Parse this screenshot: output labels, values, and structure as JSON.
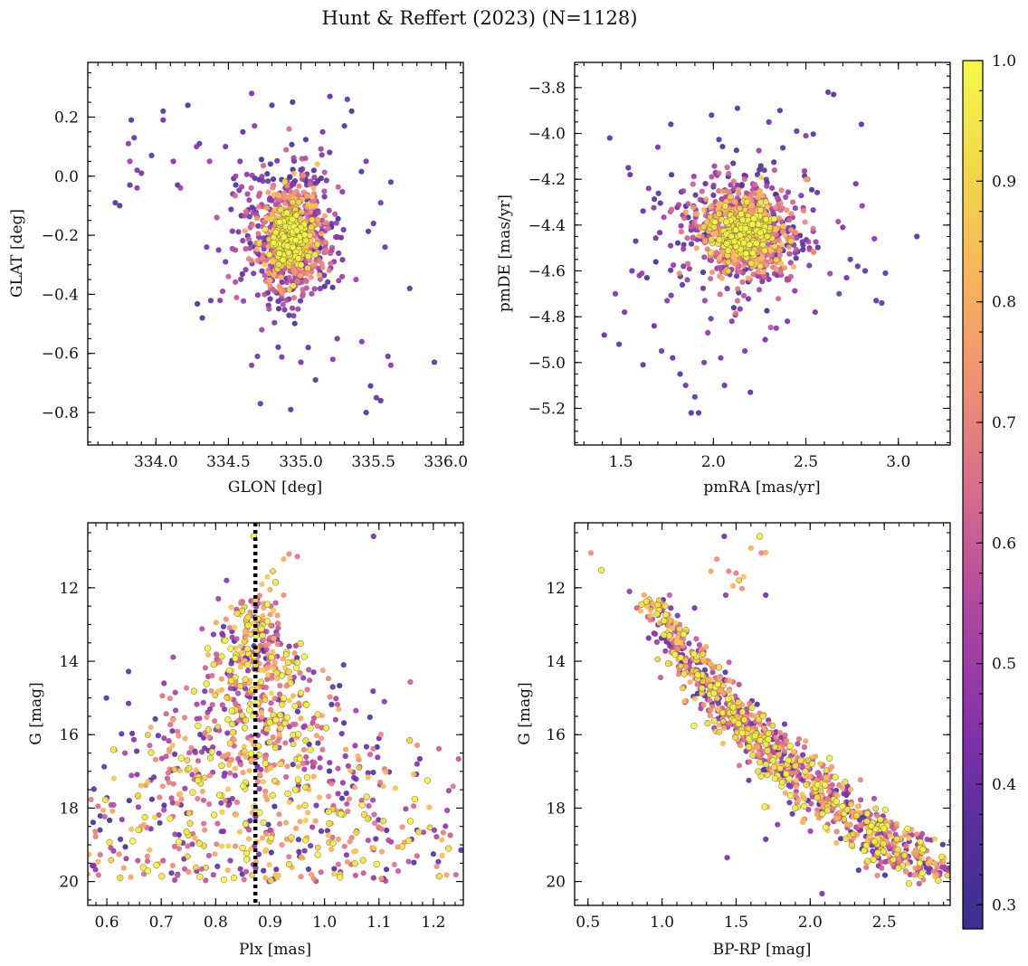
{
  "figure": {
    "title": "Hunt & Reffert (2023) (N=1128)"
  },
  "colorbar": {
    "range": [
      0.28,
      1.0
    ],
    "ticks": [
      0.3,
      0.4,
      0.5,
      0.6,
      0.7,
      0.8,
      0.9,
      1.0
    ],
    "tick_labels": [
      "0.3",
      "0.4",
      "0.5",
      "0.6",
      "0.7",
      "0.8",
      "0.9",
      "1.0"
    ],
    "colormap": "plasma",
    "stops": [
      "#3a2f8e",
      "#5a2fa0",
      "#8b33a8",
      "#b04a9f",
      "#d66b8d",
      "#ef8f74",
      "#f8b45c",
      "#f1d84b",
      "#f5f84d"
    ]
  },
  "chart_data": [
    {
      "type": "scatter",
      "panel": "sky",
      "xlabel": "GLON [deg]",
      "ylabel": "GLAT [deg]",
      "xlim": [
        333.53,
        336.12
      ],
      "ylim": [
        -0.91,
        0.385
      ],
      "xticks": [
        334.0,
        334.5,
        335.0,
        335.5,
        336.0
      ],
      "xtick_labels": [
        "334.0",
        "334.5",
        "335.0",
        "335.5",
        "336.0"
      ],
      "yticks": [
        0.2,
        0.0,
        -0.2,
        -0.4,
        -0.6,
        -0.8
      ],
      "ytick_labels": [
        "0.2",
        "0.0",
        "−0.2",
        "−0.4",
        "−0.6",
        "−0.8"
      ],
      "points": [
        [
          333.72,
          -0.09,
          0.35
        ],
        [
          333.75,
          -0.1,
          0.35
        ],
        [
          333.83,
          0.19,
          0.33
        ],
        [
          333.81,
          0.11,
          0.45
        ],
        [
          333.85,
          0.13,
          0.38
        ],
        [
          333.82,
          0.05,
          0.5
        ],
        [
          333.87,
          0.02,
          0.42
        ],
        [
          333.9,
          0.01,
          0.4
        ],
        [
          333.87,
          -0.04,
          0.45
        ],
        [
          333.82,
          -0.03,
          0.35
        ],
        [
          333.97,
          0.07,
          0.38
        ],
        [
          334.05,
          0.22,
          0.36
        ],
        [
          334.05,
          0.19,
          0.4
        ],
        [
          334.12,
          0.05,
          0.42
        ],
        [
          334.15,
          -0.03,
          0.35
        ],
        [
          334.17,
          -0.04,
          0.5
        ],
        [
          334.22,
          0.24,
          0.33
        ],
        [
          334.28,
          0.1,
          0.45
        ],
        [
          334.3,
          0.11,
          0.38
        ],
        [
          334.35,
          -0.24,
          0.42
        ],
        [
          334.32,
          -0.48,
          0.35
        ],
        [
          334.37,
          0.05,
          0.5
        ],
        [
          334.42,
          -0.14,
          0.55
        ],
        [
          334.46,
          -0.39,
          0.48
        ],
        [
          334.48,
          -0.29,
          0.4
        ],
        [
          334.5,
          -0.34,
          0.6
        ],
        [
          334.53,
          -0.06,
          0.45
        ],
        [
          334.55,
          0.0,
          0.5
        ],
        [
          334.58,
          0.05,
          0.42
        ],
        [
          334.6,
          0.15,
          0.36
        ],
        [
          334.62,
          -0.12,
          0.65
        ],
        [
          334.64,
          -0.28,
          0.7
        ],
        [
          334.66,
          0.28,
          0.4
        ],
        [
          334.68,
          0.17,
          0.45
        ],
        [
          334.7,
          -0.61,
          0.42
        ],
        [
          334.72,
          -0.77,
          0.38
        ],
        [
          334.66,
          -0.64,
          0.45
        ],
        [
          334.73,
          -0.52,
          0.5
        ],
        [
          334.78,
          -0.45,
          0.55
        ],
        [
          334.8,
          0.24,
          0.36
        ],
        [
          334.82,
          -0.39,
          0.6
        ],
        [
          334.9,
          -0.42,
          0.55
        ],
        [
          334.93,
          -0.79,
          0.35
        ],
        [
          334.98,
          -0.45,
          0.48
        ],
        [
          335.0,
          -0.63,
          0.42
        ],
        [
          335.05,
          -0.58,
          0.38
        ],
        [
          335.1,
          -0.69,
          0.35
        ],
        [
          335.15,
          0.15,
          0.42
        ],
        [
          335.2,
          0.27,
          0.38
        ],
        [
          335.22,
          -0.62,
          0.45
        ],
        [
          335.25,
          -0.55,
          0.4
        ],
        [
          335.3,
          0.17,
          0.35
        ],
        [
          335.32,
          0.26,
          0.38
        ],
        [
          335.35,
          0.22,
          0.33
        ],
        [
          335.38,
          -0.35,
          0.5
        ],
        [
          335.42,
          -0.56,
          0.45
        ],
        [
          335.45,
          0.05,
          0.42
        ],
        [
          335.48,
          -0.71,
          0.35
        ],
        [
          335.52,
          -0.75,
          0.38
        ],
        [
          335.55,
          -0.76,
          0.35
        ],
        [
          335.45,
          -0.8,
          0.35
        ],
        [
          335.6,
          -0.61,
          0.4
        ],
        [
          335.62,
          -0.64,
          0.45
        ],
        [
          335.75,
          -0.38,
          0.36
        ],
        [
          335.92,
          -0.63,
          0.35
        ],
        [
          335.58,
          -0.24,
          0.4
        ],
        [
          335.55,
          -0.09,
          0.42
        ],
        [
          335.5,
          -0.16,
          0.38
        ],
        [
          335.62,
          -0.02,
          0.36
        ],
        [
          334.48,
          0.1,
          0.4
        ]
      ],
      "cluster": {
        "n": 1058,
        "center": [
          334.92,
          -0.2
        ],
        "spread": [
          0.2,
          0.15
        ],
        "seed": 11
      }
    },
    {
      "type": "scatter",
      "panel": "proper-motion",
      "xlabel": "pmRA [mas/yr]",
      "ylabel": "pmDE [mas/yr]",
      "xlim": [
        1.25,
        3.28
      ],
      "ylim": [
        -5.36,
        -3.69
      ],
      "xticks": [
        1.5,
        2.0,
        2.5,
        3.0
      ],
      "xtick_labels": [
        "1.5",
        "2.0",
        "2.5",
        "3.0"
      ],
      "yticks": [
        -3.8,
        -4.0,
        -4.2,
        -4.4,
        -4.6,
        -4.8,
        -5.0,
        -5.2
      ],
      "ytick_labels": [
        "−3.8",
        "−4.0",
        "−4.2",
        "−4.4",
        "−4.6",
        "−4.8",
        "−5.0",
        "−5.2"
      ],
      "points": [
        [
          1.41,
          -4.88,
          0.38
        ],
        [
          1.44,
          -4.02,
          0.35
        ],
        [
          1.47,
          -4.7,
          0.42
        ],
        [
          1.49,
          -4.92,
          0.35
        ],
        [
          1.52,
          -4.78,
          0.4
        ],
        [
          1.54,
          -4.15,
          0.36
        ],
        [
          1.58,
          -4.47,
          0.38
        ],
        [
          1.6,
          -4.62,
          0.45
        ],
        [
          1.62,
          -5.01,
          0.35
        ],
        [
          1.65,
          -4.24,
          0.42
        ],
        [
          1.68,
          -4.84,
          0.38
        ],
        [
          1.72,
          -4.95,
          0.4
        ],
        [
          1.75,
          -4.73,
          0.45
        ],
        [
          1.77,
          -3.96,
          0.35
        ],
        [
          1.78,
          -4.98,
          0.38
        ],
        [
          1.82,
          -5.05,
          0.36
        ],
        [
          1.85,
          -5.1,
          0.4
        ],
        [
          1.88,
          -5.22,
          0.35
        ],
        [
          1.9,
          -5.15,
          0.38
        ],
        [
          1.92,
          -5.22,
          0.36
        ],
        [
          1.95,
          -5.0,
          0.42
        ],
        [
          1.97,
          -4.87,
          0.45
        ],
        [
          1.99,
          -3.92,
          0.36
        ],
        [
          2.04,
          -4.98,
          0.4
        ],
        [
          2.06,
          -5.1,
          0.38
        ],
        [
          2.1,
          -4.82,
          0.45
        ],
        [
          2.13,
          -3.89,
          0.35
        ],
        [
          2.17,
          -4.95,
          0.42
        ],
        [
          2.2,
          -5.13,
          0.36
        ],
        [
          2.28,
          -4.9,
          0.4
        ],
        [
          2.3,
          -3.95,
          0.38
        ],
        [
          2.34,
          -4.85,
          0.45
        ],
        [
          2.36,
          -3.9,
          0.36
        ],
        [
          2.4,
          -4.82,
          0.4
        ],
        [
          2.45,
          -3.99,
          0.38
        ],
        [
          2.5,
          -4.01,
          0.45
        ],
        [
          2.55,
          -4.78,
          0.42
        ],
        [
          2.62,
          -3.82,
          0.35
        ],
        [
          2.65,
          -3.83,
          0.35
        ],
        [
          2.68,
          -4.7,
          0.4
        ],
        [
          2.7,
          -4.41,
          0.42
        ],
        [
          2.74,
          -4.55,
          0.38
        ],
        [
          2.77,
          -4.22,
          0.4
        ],
        [
          2.8,
          -3.96,
          0.36
        ],
        [
          2.82,
          -4.6,
          0.38
        ],
        [
          2.87,
          -4.46,
          0.45
        ],
        [
          2.88,
          -4.73,
          0.36
        ],
        [
          2.91,
          -4.74,
          0.38
        ],
        [
          2.93,
          -4.61,
          0.36
        ],
        [
          3.1,
          -4.45,
          0.35
        ],
        [
          2.72,
          -4.63,
          0.4
        ],
        [
          2.78,
          -4.58,
          0.38
        ],
        [
          1.56,
          -4.6,
          0.4
        ],
        [
          1.55,
          -4.18,
          0.36
        ],
        [
          1.7,
          -4.06,
          0.4
        ]
      ],
      "cluster": {
        "n": 1073,
        "center": [
          2.17,
          -4.43
        ],
        "spread": [
          0.23,
          0.17
        ],
        "seed": 22
      }
    },
    {
      "type": "scatter",
      "panel": "parallax-magnitude",
      "xlabel": "Plx [mas]",
      "ylabel": "G [mag]",
      "xlim": [
        0.565,
        1.255
      ],
      "ylim": [
        20.65,
        10.23
      ],
      "xticks": [
        0.6,
        0.7,
        0.8,
        0.9,
        1.0,
        1.1,
        1.2
      ],
      "xtick_labels": [
        "0.6",
        "0.7",
        "0.8",
        "0.9",
        "1.0",
        "1.1",
        "1.2"
      ],
      "yticks": [
        12,
        14,
        16,
        18,
        20
      ],
      "ytick_labels": [
        "12",
        "14",
        "16",
        "18",
        "20"
      ],
      "vline": {
        "x": 0.873,
        "style": "dotted",
        "color": "#000000"
      },
      "points": [
        [
          0.935,
          11.08,
          0.72
        ],
        [
          0.95,
          11.15,
          0.65
        ],
        [
          0.925,
          11.22,
          0.8
        ],
        [
          0.905,
          11.55,
          0.9
        ],
        [
          0.895,
          11.7,
          0.88
        ],
        [
          0.91,
          11.85,
          0.95
        ],
        [
          0.885,
          11.9,
          0.85
        ],
        [
          0.9,
          12.05,
          0.8
        ],
        [
          0.925,
          12.2,
          0.72
        ],
        [
          0.87,
          10.6,
          0.95
        ],
        [
          1.09,
          10.6,
          0.4
        ],
        [
          0.82,
          11.8,
          0.45
        ],
        [
          0.805,
          12.3,
          0.5
        ],
        [
          0.775,
          13.12,
          0.55
        ],
        [
          0.64,
          14.28,
          0.38
        ],
        [
          0.64,
          15.15,
          0.4
        ],
        [
          0.705,
          14.6,
          0.45
        ],
        [
          1.015,
          14.7,
          0.4
        ],
        [
          1.035,
          14.1,
          0.36
        ],
        [
          1.11,
          15.1,
          0.45
        ],
        [
          1.17,
          16.8,
          0.45
        ],
        [
          1.1,
          16.1,
          0.42
        ],
        [
          1.2,
          19.25,
          0.35
        ],
        [
          1.17,
          18.6,
          0.38
        ],
        [
          1.16,
          18.85,
          0.42
        ],
        [
          0.625,
          18.85,
          0.35
        ],
        [
          0.655,
          16.45,
          0.38
        ],
        [
          1.09,
          19.9,
          0.45
        ],
        [
          0.6,
          17.72,
          0.4
        ],
        [
          0.98,
          14.3,
          0.42
        ]
      ],
      "cluster": {
        "n": 1098,
        "center": [
          0.873,
          16.4
        ],
        "spread": [
          0.12,
          1.8
        ],
        "seed": 33
      }
    },
    {
      "type": "scatter",
      "panel": "color-magnitude",
      "xlabel": "BP-RP [mag]",
      "ylabel": "G [mag]",
      "xlim": [
        0.41,
        2.945
      ],
      "ylim": [
        20.65,
        10.23
      ],
      "xticks": [
        0.5,
        1.0,
        1.5,
        2.0,
        2.5
      ],
      "xtick_labels": [
        "0.5",
        "1.0",
        "1.5",
        "2.0",
        "2.5"
      ],
      "yticks": [
        12,
        14,
        16,
        18,
        20
      ],
      "ytick_labels": [
        "12",
        "14",
        "16",
        "18",
        "20"
      ],
      "points": [
        [
          0.52,
          11.05,
          0.72
        ],
        [
          0.59,
          11.52,
          0.95
        ],
        [
          0.78,
          12.1,
          0.48
        ],
        [
          0.88,
          12.2,
          0.78
        ],
        [
          0.83,
          12.55,
          0.6
        ],
        [
          1.05,
          12.2,
          0.6
        ],
        [
          1.22,
          12.55,
          0.4
        ],
        [
          1.43,
          12.2,
          0.48
        ],
        [
          1.42,
          10.6,
          0.4
        ],
        [
          1.66,
          10.6,
          0.96
        ],
        [
          1.6,
          10.92,
          0.8
        ],
        [
          1.67,
          11.05,
          0.7
        ],
        [
          1.7,
          11.04,
          0.8
        ],
        [
          1.37,
          11.22,
          0.72
        ],
        [
          1.45,
          11.55,
          0.7
        ],
        [
          1.5,
          11.6,
          0.68
        ],
        [
          1.52,
          11.8,
          0.9
        ],
        [
          1.48,
          11.95,
          0.82
        ],
        [
          1.55,
          11.7,
          0.85
        ],
        [
          1.54,
          12.02,
          0.72
        ],
        [
          1.33,
          11.55,
          0.78
        ],
        [
          1.7,
          12.2,
          0.4
        ],
        [
          1.86,
          17.85,
          0.4
        ],
        [
          1.78,
          18.45,
          0.45
        ],
        [
          1.44,
          19.35,
          0.42
        ],
        [
          2.08,
          20.33,
          0.42
        ],
        [
          2.8,
          19.75,
          0.4
        ],
        [
          1.95,
          16.55,
          0.42
        ],
        [
          1.7,
          18.85,
          0.38
        ],
        [
          0.97,
          13.95,
          0.9
        ]
      ],
      "cluster": {
        "n": 1098,
        "sequence": "main",
        "seed": 44
      }
    }
  ]
}
